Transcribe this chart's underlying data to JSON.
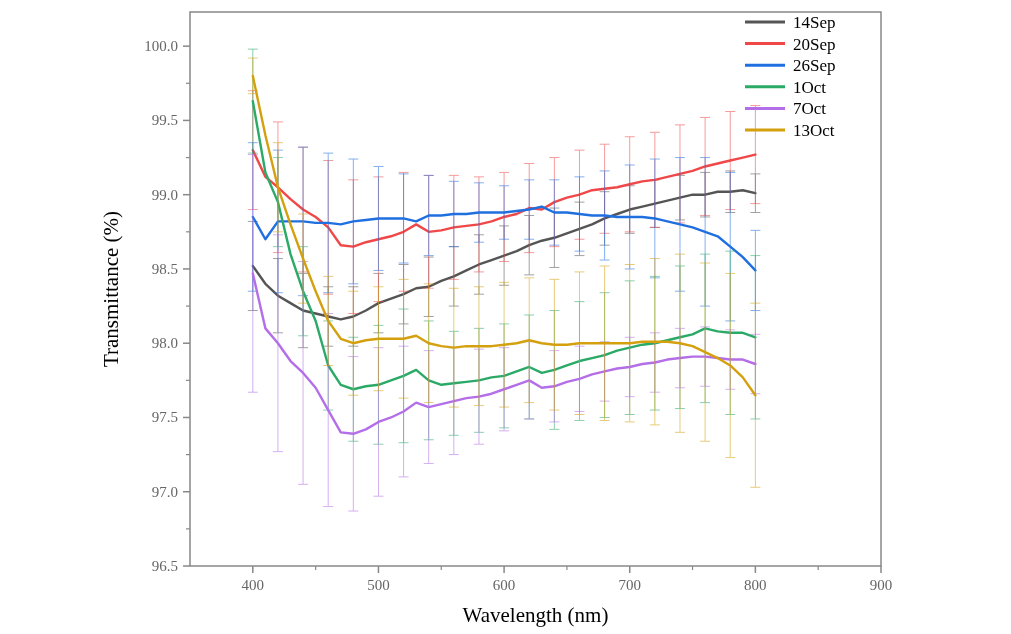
{
  "chart_data": {
    "type": "line",
    "xlabel": "Wavelength (nm)",
    "ylabel": "Transmittance (%)",
    "x": [
      400,
      410,
      420,
      430,
      440,
      450,
      460,
      470,
      480,
      490,
      500,
      510,
      520,
      530,
      540,
      550,
      560,
      570,
      580,
      590,
      600,
      610,
      620,
      630,
      640,
      650,
      660,
      670,
      680,
      690,
      700,
      710,
      720,
      730,
      740,
      750,
      760,
      770,
      780,
      790,
      800
    ],
    "xlim": [
      350,
      900
    ],
    "xticks": [
      400,
      500,
      600,
      700,
      800,
      900
    ],
    "ylim": [
      96.5,
      100.23
    ],
    "yticks": [
      {
        "value": 96.5,
        "label": "96.5"
      },
      {
        "value": 97,
        "label": "97.0"
      },
      {
        "value": 97.5,
        "label": "97.5"
      },
      {
        "value": 98,
        "label": "98.0"
      },
      {
        "value": 98.5,
        "label": "98.5"
      },
      {
        "value": 99,
        "label": "99.0"
      },
      {
        "value": 99.5,
        "label": "99.5"
      },
      {
        "value": 100,
        "label": "100.0"
      }
    ],
    "grid": false,
    "legend": "top right",
    "marker": "none",
    "line_style": "solid",
    "series": [
      {
        "name": "14Sep",
        "color": "#555555",
        "values": [
          98.52,
          98.4,
          98.32,
          98.27,
          98.22,
          98.2,
          98.18,
          98.16,
          98.18,
          98.22,
          98.27,
          98.3,
          98.33,
          98.37,
          98.38,
          98.42,
          98.45,
          98.49,
          98.53,
          98.56,
          98.59,
          98.62,
          98.66,
          98.69,
          98.71,
          98.74,
          98.77,
          98.8,
          98.84,
          98.87,
          98.9,
          98.92,
          98.94,
          98.96,
          98.98,
          99.0,
          99.0,
          99.02,
          99.02,
          99.03,
          99.01
        ],
        "errors": [
          0.3,
          null,
          0.25,
          null,
          0.25,
          null,
          0.2,
          null,
          0.2,
          null,
          0.2,
          null,
          0.2,
          null,
          0.2,
          null,
          0.2,
          null,
          0.2,
          null,
          0.2,
          null,
          0.2,
          null,
          0.2,
          null,
          0.18,
          null,
          0.18,
          null,
          0.16,
          null,
          0.16,
          null,
          0.15,
          null,
          0.15,
          null,
          0.14,
          null,
          0.13
        ]
      },
      {
        "name": "20Sep",
        "color": "#f04848",
        "values": [
          99.3,
          99.12,
          99.05,
          98.97,
          98.9,
          98.85,
          98.78,
          98.66,
          98.65,
          98.68,
          98.7,
          98.72,
          98.75,
          98.8,
          98.75,
          98.76,
          98.78,
          98.79,
          98.8,
          98.82,
          98.85,
          98.87,
          98.91,
          98.9,
          98.95,
          98.98,
          99.0,
          99.03,
          99.04,
          99.05,
          99.07,
          99.09,
          99.1,
          99.12,
          99.14,
          99.16,
          99.19,
          99.21,
          99.23,
          99.25,
          99.27
        ],
        "errors": [
          0.4,
          null,
          0.44,
          null,
          0.42,
          null,
          0.45,
          null,
          0.45,
          null,
          0.42,
          null,
          0.4,
          null,
          0.38,
          null,
          0.35,
          null,
          0.32,
          null,
          0.3,
          null,
          0.3,
          null,
          0.3,
          null,
          0.3,
          null,
          0.3,
          null,
          0.32,
          null,
          0.32,
          null,
          0.33,
          null,
          0.33,
          null,
          0.33,
          null,
          0.33
        ]
      },
      {
        "name": "26Sep",
        "color": "#1f6fe0",
        "values": [
          98.85,
          98.7,
          98.82,
          98.82,
          98.82,
          98.81,
          98.81,
          98.8,
          98.82,
          98.83,
          98.84,
          98.84,
          98.84,
          98.82,
          98.86,
          98.86,
          98.87,
          98.87,
          98.88,
          98.88,
          98.88,
          98.89,
          98.9,
          98.92,
          98.88,
          98.88,
          98.87,
          98.86,
          98.86,
          98.85,
          98.85,
          98.85,
          98.84,
          98.82,
          98.8,
          98.78,
          98.75,
          98.72,
          98.65,
          98.58,
          98.49
        ],
        "errors": [
          0.5,
          null,
          0.48,
          null,
          0.5,
          null,
          0.47,
          null,
          0.42,
          null,
          0.35,
          null,
          0.3,
          null,
          0.27,
          null,
          0.22,
          null,
          0.2,
          null,
          0.18,
          null,
          0.2,
          null,
          0.22,
          null,
          0.25,
          null,
          0.3,
          null,
          0.35,
          null,
          0.4,
          null,
          0.45,
          null,
          0.5,
          null,
          0.5,
          null,
          0.27
        ]
      },
      {
        "name": "1Oct",
        "color": "#2aaa66",
        "values": [
          99.63,
          99.15,
          98.95,
          98.6,
          98.35,
          98.15,
          97.85,
          97.72,
          97.69,
          97.71,
          97.72,
          97.75,
          97.78,
          97.82,
          97.75,
          97.72,
          97.73,
          97.74,
          97.75,
          97.77,
          97.78,
          97.81,
          97.84,
          97.8,
          97.82,
          97.85,
          97.88,
          97.9,
          97.92,
          97.95,
          97.97,
          97.99,
          98.0,
          98.02,
          98.04,
          98.06,
          98.1,
          98.08,
          98.07,
          98.07,
          98.04
        ],
        "errors": [
          0.35,
          null,
          0.3,
          null,
          0.3,
          null,
          0.3,
          null,
          0.35,
          null,
          0.4,
          null,
          0.45,
          null,
          0.4,
          null,
          0.35,
          null,
          0.35,
          null,
          0.35,
          null,
          0.35,
          null,
          0.4,
          null,
          0.4,
          null,
          0.42,
          null,
          0.45,
          null,
          0.45,
          null,
          0.48,
          null,
          0.5,
          null,
          0.55,
          null,
          0.55
        ]
      },
      {
        "name": "7Oct",
        "color": "#b36ee8",
        "values": [
          98.47,
          98.1,
          98.0,
          97.88,
          97.8,
          97.7,
          97.55,
          97.4,
          97.39,
          97.42,
          97.47,
          97.5,
          97.54,
          97.6,
          97.57,
          97.59,
          97.61,
          97.63,
          97.64,
          97.66,
          97.69,
          97.72,
          97.75,
          97.7,
          97.71,
          97.74,
          97.76,
          97.79,
          97.81,
          97.83,
          97.84,
          97.86,
          97.87,
          97.89,
          97.9,
          97.91,
          97.91,
          97.9,
          97.89,
          97.89,
          97.86
        ],
        "errors": [
          0.8,
          null,
          0.73,
          null,
          0.75,
          null,
          0.65,
          null,
          0.52,
          null,
          0.5,
          null,
          0.44,
          null,
          0.38,
          null,
          0.36,
          null,
          0.32,
          null,
          0.28,
          null,
          0.26,
          null,
          0.24,
          null,
          0.22,
          null,
          0.2,
          null,
          0.2,
          null,
          0.2,
          null,
          0.2,
          null,
          0.2,
          null,
          0.2,
          null,
          0.2
        ]
      },
      {
        "name": "13Oct",
        "color": "#d4a00e",
        "values": [
          99.8,
          99.4,
          99.05,
          98.8,
          98.57,
          98.35,
          98.15,
          98.03,
          98.0,
          98.02,
          98.03,
          98.03,
          98.03,
          98.05,
          98.0,
          97.98,
          97.97,
          97.98,
          97.98,
          97.98,
          97.99,
          98.0,
          98.02,
          98.0,
          97.99,
          97.99,
          98.0,
          98.0,
          98.0,
          98.0,
          98.0,
          98.01,
          98.01,
          98.01,
          98.0,
          97.98,
          97.94,
          97.9,
          97.85,
          97.77,
          97.65
        ],
        "errors": [
          0.12,
          null,
          0.3,
          null,
          0.3,
          null,
          0.3,
          null,
          0.35,
          null,
          0.35,
          null,
          0.4,
          null,
          0.4,
          null,
          0.4,
          null,
          0.4,
          null,
          0.42,
          null,
          0.42,
          null,
          0.44,
          null,
          0.48,
          null,
          0.52,
          null,
          0.53,
          null,
          0.56,
          null,
          0.6,
          null,
          0.6,
          null,
          0.62,
          null,
          0.62
        ]
      }
    ]
  }
}
